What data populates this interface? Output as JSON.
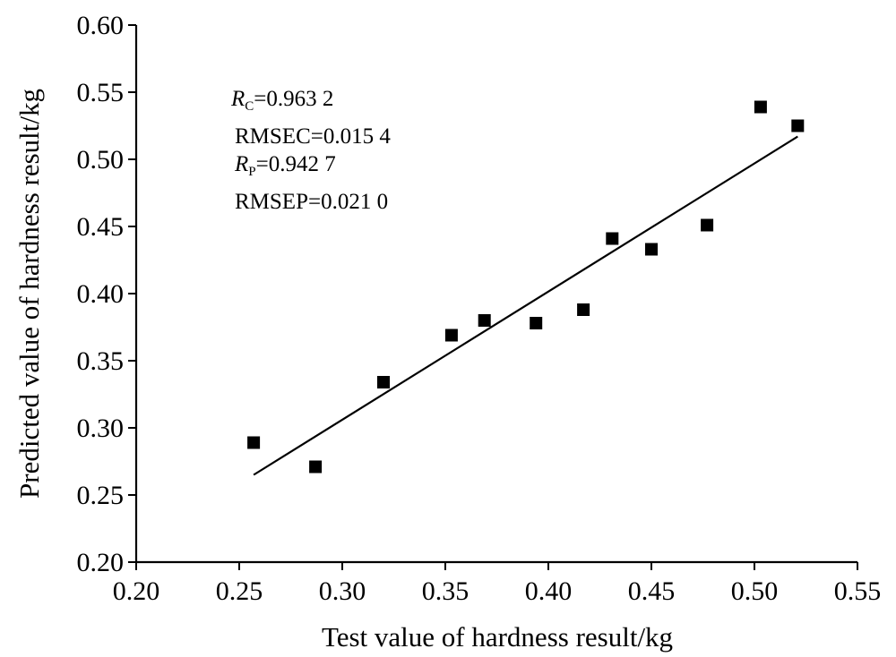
{
  "chart_data": {
    "type": "scatter",
    "title": "",
    "xlabel": "Test value of  hardness result/kg",
    "ylabel": "Predicted value of  hardness result/kg",
    "xlim": [
      0.2,
      0.55
    ],
    "ylim": [
      0.2,
      0.6
    ],
    "x_ticks": [
      "0.20",
      "0.25",
      "0.30",
      "0.35",
      "0.40",
      "0.45",
      "0.50",
      "0.55"
    ],
    "y_ticks": [
      "0.20",
      "0.25",
      "0.30",
      "0.35",
      "0.40",
      "0.45",
      "0.50",
      "0.55",
      "0.60"
    ],
    "grid": false,
    "legend": "none",
    "marker": "square",
    "color": "#000000",
    "points": [
      {
        "x": 0.257,
        "y": 0.289
      },
      {
        "x": 0.287,
        "y": 0.271
      },
      {
        "x": 0.32,
        "y": 0.334
      },
      {
        "x": 0.353,
        "y": 0.369
      },
      {
        "x": 0.369,
        "y": 0.38
      },
      {
        "x": 0.394,
        "y": 0.378
      },
      {
        "x": 0.417,
        "y": 0.388
      },
      {
        "x": 0.431,
        "y": 0.441
      },
      {
        "x": 0.45,
        "y": 0.433
      },
      {
        "x": 0.477,
        "y": 0.451
      },
      {
        "x": 0.503,
        "y": 0.539
      },
      {
        "x": 0.521,
        "y": 0.525
      }
    ],
    "fit_line": {
      "x": [
        0.257,
        0.521
      ],
      "y": [
        0.265,
        0.517
      ]
    },
    "annotations": [
      {
        "italic": "R",
        "sub": "C",
        "text": "=0.963 2"
      },
      {
        "italic": "",
        "sub": "",
        "text": "RMSEC=0.015 4"
      },
      {
        "italic": "R",
        "sub": "P",
        "text": "=0.942 7"
      },
      {
        "italic": "",
        "sub": "",
        "text": "RMSEP=0.021 0"
      }
    ]
  }
}
